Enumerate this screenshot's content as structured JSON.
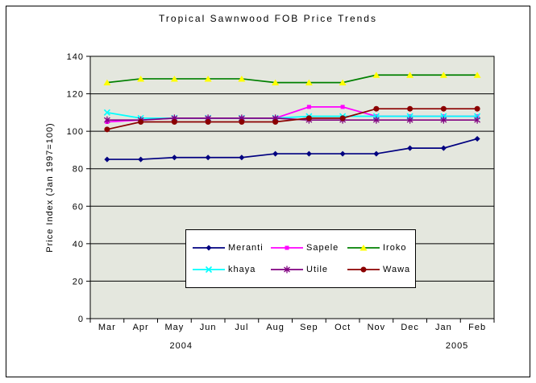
{
  "chart_data": {
    "type": "line",
    "title": "Tropical Sawnwood FOB Price Trends",
    "ylabel": "Price Index (Jan 1997=100)",
    "xlabel": "",
    "categories": [
      "Mar",
      "Apr",
      "May",
      "Jun",
      "Jul",
      "Aug",
      "Sep",
      "Oct",
      "Nov",
      "Dec",
      "Jan",
      "Feb"
    ],
    "year_labels": [
      {
        "label": "2004",
        "month_index": 2.2
      },
      {
        "label": "2005",
        "month_index": 10.4
      }
    ],
    "ylim": [
      0,
      140
    ],
    "ytick_step": 20,
    "grid": true,
    "plot_bg": "#E4E7DE",
    "grid_color": "#000000",
    "legend_position": "inside-bottom-center",
    "series": [
      {
        "name": "Meranti",
        "color": "#000080",
        "marker": "diamond",
        "marker_color": "#000080",
        "values": [
          85,
          85,
          86,
          86,
          86,
          88,
          88,
          88,
          88,
          91,
          91,
          96
        ]
      },
      {
        "name": "Sapele",
        "color": "#FF00FF",
        "marker": "square",
        "marker_color": "#FF00FF",
        "values": [
          105,
          106,
          107,
          107,
          107,
          107,
          113,
          113,
          108,
          108,
          108,
          108
        ]
      },
      {
        "name": "Iroko",
        "color": "#008000",
        "marker": "triangle",
        "marker_color": "#FFFF00",
        "values": [
          126,
          128,
          128,
          128,
          128,
          126,
          126,
          126,
          130,
          130,
          130,
          130
        ]
      },
      {
        "name": "khaya",
        "color": "#00FFFF",
        "marker": "x",
        "marker_color": "#00FFFF",
        "values": [
          110,
          107,
          107,
          107,
          107,
          107,
          108,
          108,
          108,
          108,
          108,
          108
        ]
      },
      {
        "name": "Utile",
        "color": "#800080",
        "marker": "asterisk",
        "marker_color": "#800080",
        "values": [
          106,
          106,
          107,
          107,
          107,
          107,
          106,
          106,
          106,
          106,
          106,
          106
        ]
      },
      {
        "name": "Wawa",
        "color": "#8B0000",
        "marker": "circle",
        "marker_color": "#8B0000",
        "values": [
          101,
          105,
          105,
          105,
          105,
          105,
          107,
          107,
          112,
          112,
          112,
          112
        ]
      }
    ]
  }
}
